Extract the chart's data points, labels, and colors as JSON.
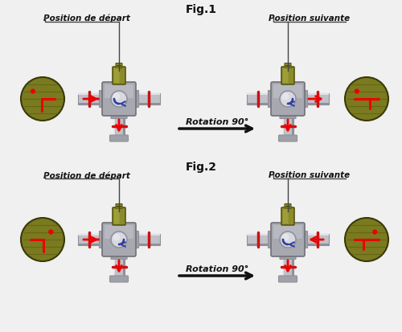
{
  "title1": "Fig.1",
  "title2": "Fig.2",
  "label_depart": "Position de départ",
  "label_suivante": "Position suivante",
  "rotation_label": "Rotation 90°",
  "bg_color": "#f0f0f0",
  "pipe_color": "#c0c0c8",
  "pipe_dark": "#909098",
  "pipe_mid": "#b0b0b8",
  "body_color": "#a8a8b0",
  "body_dark": "#707078",
  "ball_color": "#d8d8e0",
  "ball_dark": "#9090a0",
  "actuator_color": "#8b8b2a",
  "actuator_dark": "#555510",
  "actuator_light": "#bcbc50",
  "red": "#ee0000",
  "ring_red": "#cc1111",
  "olive": "#7a7a20",
  "olive_dark": "#3a3a08",
  "olive_stripe": "#606010",
  "text_color": "#111111",
  "arrow_color": "#111111"
}
